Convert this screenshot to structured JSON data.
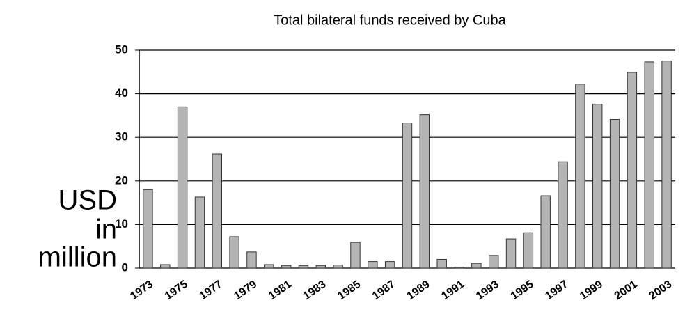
{
  "chart_data": {
    "type": "bar",
    "title": "Total bilateral funds received by Cuba",
    "y_label": [
      "USD",
      "in",
      "million"
    ],
    "categories": [
      "1973",
      null,
      "1975",
      null,
      "1977",
      null,
      "1979",
      null,
      "1981",
      null,
      "1983",
      null,
      "1985",
      null,
      "1987",
      null,
      "1989",
      null,
      "1991",
      null,
      "1993",
      null,
      "1995",
      null,
      "1997",
      null,
      "1999",
      null,
      "2001",
      null,
      "2003"
    ],
    "values": [
      18,
      0.8,
      37,
      16.3,
      26.2,
      7.2,
      3.7,
      0.8,
      0.6,
      0.6,
      0.6,
      0.7,
      5.9,
      1.5,
      1.5,
      33.3,
      35.2,
      2,
      0.2,
      1.1,
      2.9,
      6.7,
      8.1,
      16.6,
      24.4,
      42.2,
      37.6,
      34.1,
      44.9,
      47.3,
      47.5
    ],
    "color": "#b4b4b4",
    "ylim": [
      0,
      50
    ],
    "yticks": [
      0,
      10,
      20,
      30,
      40,
      50
    ],
    "grid": true
  }
}
